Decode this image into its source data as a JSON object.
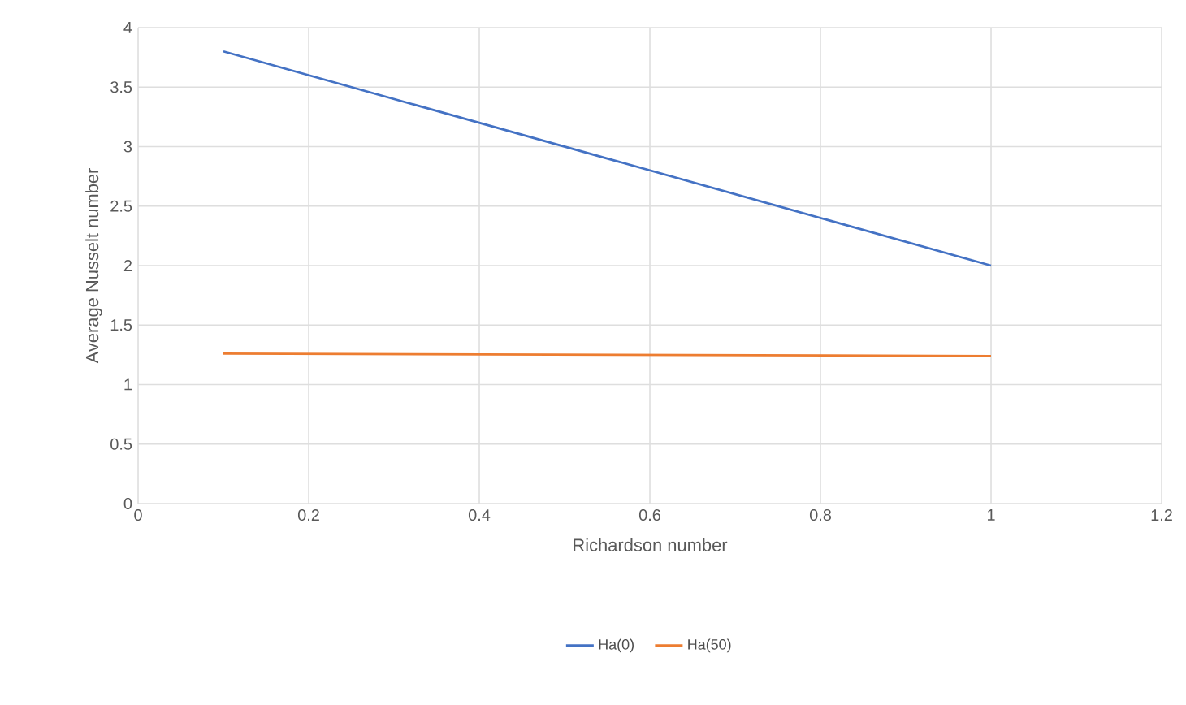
{
  "chart_data": {
    "type": "line",
    "xlabel": "Richardson number",
    "ylabel": "Average Nusselt number",
    "x": [
      0.1,
      1
    ],
    "series": [
      {
        "name": "Ha(0)",
        "color": "#4472c4",
        "values": [
          3.8,
          2.0
        ]
      },
      {
        "name": "Ha(50)",
        "color": "#ed7d31",
        "values": [
          1.26,
          1.24
        ]
      }
    ],
    "xlim": [
      0,
      1.2
    ],
    "xticks": [
      0,
      0.2,
      0.4,
      0.6,
      0.8,
      1,
      1.2
    ],
    "ylim": [
      0,
      4
    ],
    "yticks": [
      0,
      0.5,
      1,
      1.5,
      2,
      2.5,
      3,
      3.5,
      4
    ],
    "grid": true,
    "legend": "bottom",
    "marker": "none",
    "line_style": "solid"
  }
}
